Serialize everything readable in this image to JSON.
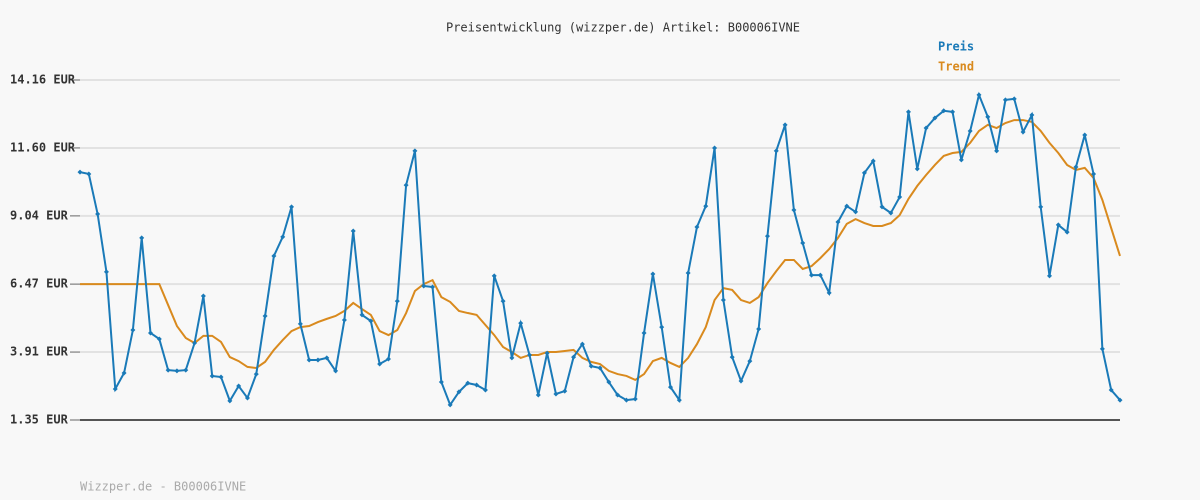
{
  "chart_data": {
    "type": "line",
    "title": "Preisentwicklung (wizzper.de) Artikel: B00006IVNE",
    "footer": "Wizzper.de - B00006IVNE",
    "ylim": [
      1.35,
      14.16
    ],
    "yticks": [
      {
        "value": 1.35,
        "label": "1.35 EUR"
      },
      {
        "value": 3.91,
        "label": "3.91 EUR"
      },
      {
        "value": 6.47,
        "label": "6.47 EUR"
      },
      {
        "value": 9.04,
        "label": "9.04 EUR"
      },
      {
        "value": 11.6,
        "label": "11.60 EUR"
      },
      {
        "value": 14.16,
        "label": "14.16 EUR"
      }
    ],
    "grid": true,
    "series": [
      {
        "name": "Preis",
        "color": "#1a7ab8",
        "markers": true,
        "values": [
          10.69,
          10.62,
          9.11,
          6.93,
          2.52,
          3.12,
          4.74,
          8.21,
          4.63,
          4.4,
          3.23,
          3.2,
          3.23,
          4.25,
          6.02,
          3.01,
          2.97,
          2.07,
          2.63,
          2.18,
          3.08,
          5.27,
          7.53,
          8.25,
          9.38,
          4.97,
          3.61,
          3.61,
          3.69,
          3.2,
          5.12,
          8.47,
          5.31,
          5.08,
          3.46,
          3.65,
          5.83,
          10.2,
          11.49,
          6.4,
          6.36,
          2.78,
          1.92,
          2.41,
          2.74,
          2.67,
          2.48,
          6.78,
          5.83,
          3.69,
          5.0,
          3.8,
          2.29,
          3.87,
          2.33,
          2.44,
          3.72,
          4.21,
          3.38,
          3.31,
          2.78,
          2.29,
          2.1,
          2.14,
          4.63,
          6.85,
          4.85,
          2.59,
          2.1,
          6.89,
          8.62,
          9.41,
          11.6,
          5.87,
          3.72,
          2.82,
          3.57,
          4.78,
          8.28,
          11.49,
          12.47,
          9.26,
          8.02,
          6.81,
          6.81,
          6.14,
          8.81,
          9.41,
          9.19,
          10.66,
          11.11,
          9.38,
          9.15,
          9.75,
          12.96,
          10.81,
          12.35,
          12.73,
          13.0,
          12.96,
          11.15,
          12.24,
          13.6,
          12.77,
          11.49,
          13.41,
          13.45,
          12.2,
          12.84,
          9.38,
          6.78,
          8.7,
          8.43,
          10.88,
          12.09,
          10.62,
          4.03,
          2.48,
          2.1
        ]
      },
      {
        "name": "Trend",
        "color": "#d98a1e",
        "markers": false,
        "values": [
          6.47,
          6.47,
          6.47,
          6.47,
          6.47,
          6.47,
          6.47,
          6.47,
          6.47,
          6.47,
          5.68,
          4.89,
          4.44,
          4.25,
          4.52,
          4.52,
          4.29,
          3.72,
          3.57,
          3.35,
          3.31,
          3.54,
          3.99,
          4.36,
          4.7,
          4.85,
          4.89,
          5.04,
          5.16,
          5.27,
          5.46,
          5.76,
          5.53,
          5.31,
          4.7,
          4.55,
          4.74,
          5.38,
          6.21,
          6.47,
          6.62,
          5.98,
          5.8,
          5.46,
          5.38,
          5.31,
          4.93,
          4.55,
          4.1,
          3.91,
          3.69,
          3.8,
          3.8,
          3.91,
          3.91,
          3.95,
          3.99,
          3.69,
          3.54,
          3.46,
          3.2,
          3.08,
          3.01,
          2.86,
          3.08,
          3.57,
          3.69,
          3.5,
          3.35,
          3.69,
          4.21,
          4.85,
          5.87,
          6.32,
          6.25,
          5.87,
          5.76,
          5.98,
          6.51,
          6.96,
          7.38,
          7.38,
          7.04,
          7.15,
          7.45,
          7.79,
          8.21,
          8.74,
          8.92,
          8.77,
          8.66,
          8.66,
          8.77,
          9.07,
          9.68,
          10.17,
          10.58,
          10.96,
          11.3,
          11.41,
          11.45,
          11.79,
          12.24,
          12.47,
          12.35,
          12.54,
          12.65,
          12.65,
          12.58,
          12.24,
          11.79,
          11.41,
          10.96,
          10.77,
          10.85,
          10.47,
          9.64,
          8.58,
          7.53
        ]
      }
    ]
  }
}
